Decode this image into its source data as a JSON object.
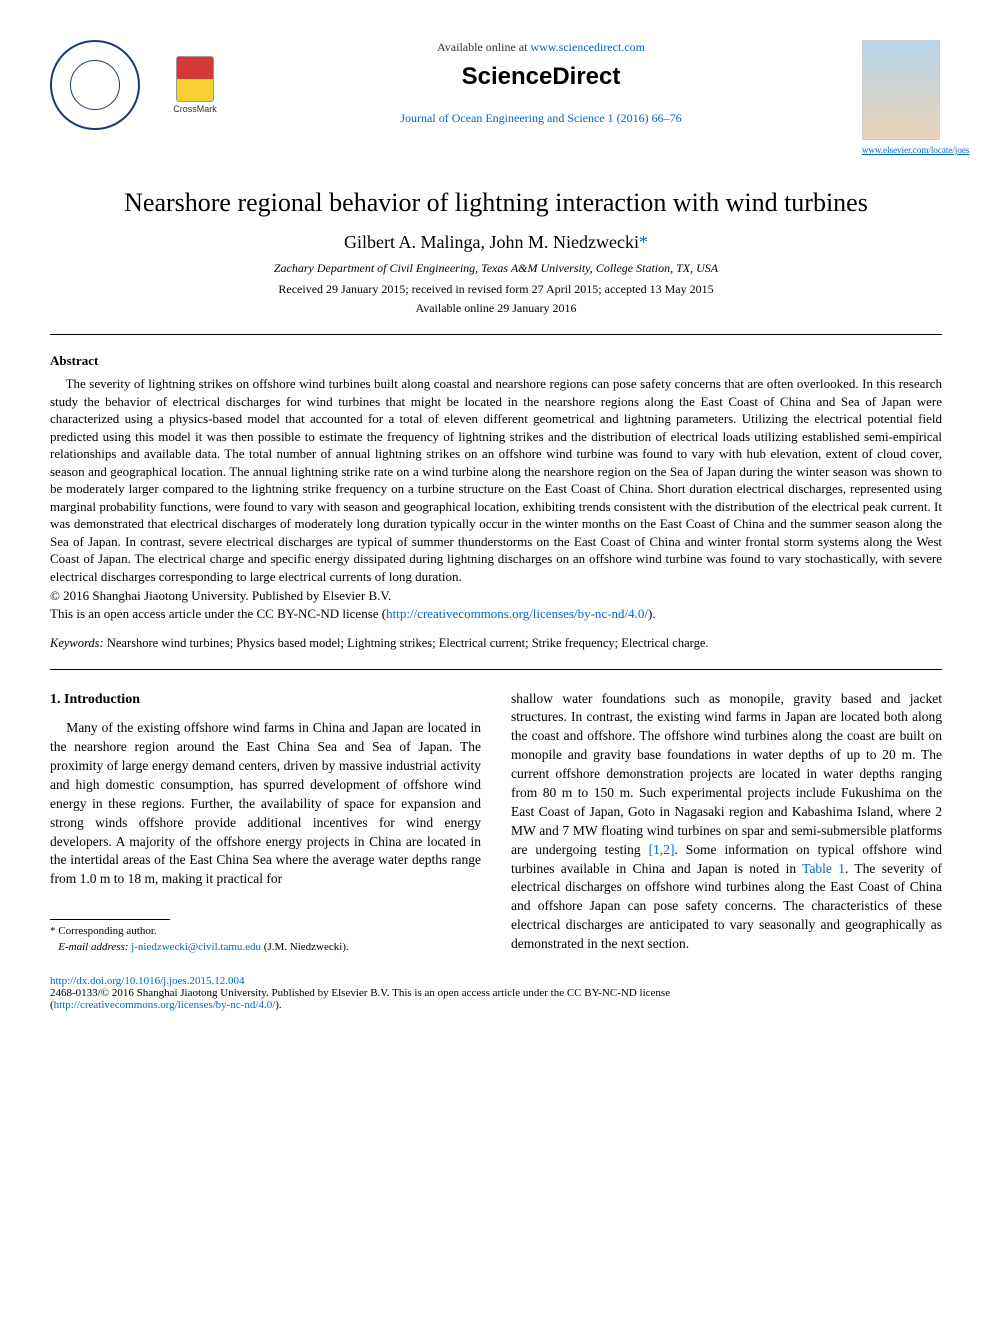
{
  "header": {
    "available_prefix": "Available online at ",
    "available_url": "www.sciencedirect.com",
    "brand": "ScienceDirect",
    "journal_citation": "Journal of Ocean Engineering and Science 1 (2016) 66–76",
    "cover_link": "www.elsevier.com/locate/joes",
    "crossmark_label": "CrossMark"
  },
  "article": {
    "title": "Nearshore regional behavior of lightning interaction with wind turbines",
    "authors": "Gilbert A. Malinga, John M. Niedzwecki",
    "corr_marker": "*",
    "affiliation": "Zachary Department of Civil Engineering, Texas A&M University, College Station, TX, USA",
    "dates_line1": "Received 29 January 2015; received in revised form 27 April 2015; accepted 13 May 2015",
    "dates_line2": "Available online 29 January 2016"
  },
  "abstract": {
    "heading": "Abstract",
    "body": "The severity of lightning strikes on offshore wind turbines built along coastal and nearshore regions can pose safety concerns that are often overlooked. In this research study the behavior of electrical discharges for wind turbines that might be located in the nearshore regions along the East Coast of China and Sea of Japan were characterized using a physics-based model that accounted for a total of eleven different geometrical and lightning parameters. Utilizing the electrical potential field predicted using this model it was then possible to estimate the frequency of lightning strikes and the distribution of electrical loads utilizing established semi-empirical relationships and available data. The total number of annual lightning strikes on an offshore wind turbine was found to vary with hub elevation, extent of cloud cover, season and geographical location. The annual lightning strike rate on a wind turbine along the nearshore region on the Sea of Japan during the winter season was shown to be moderately larger compared to the lightning strike frequency on a turbine structure on the East Coast of China. Short duration electrical discharges, represented using marginal probability functions, were found to vary with season and geographical location, exhibiting trends consistent with the distribution of the electrical peak current. It was demonstrated that electrical discharges of moderately long duration typically occur in the winter months on the East Coast of China and the summer season along the Sea of Japan. In contrast, severe electrical discharges are typical of summer thunderstorms on the East Coast of China and winter frontal storm systems along the West Coast of Japan. The electrical charge and specific energy dissipated during lightning discharges on an offshore wind turbine was found to vary stochastically, with severe electrical discharges corresponding to large electrical currents of long duration.",
    "copyright": "© 2016 Shanghai Jiaotong University. Published by Elsevier B.V.",
    "license_prefix": "This is an open access article under the CC BY-NC-ND license (",
    "license_url": "http://creativecommons.org/licenses/by-nc-nd/4.0/",
    "license_suffix": ")."
  },
  "keywords": {
    "label": "Keywords:",
    "list": " Nearshore wind turbines; Physics based model; Lightning strikes; Electrical current; Strike frequency; Electrical charge."
  },
  "body": {
    "sec1_heading": "1. Introduction",
    "left_para": "Many of the existing offshore wind farms in China and Japan are located in the nearshore region around the East China Sea and Sea of Japan. The proximity of large energy demand centers, driven by massive industrial activity and high domestic consumption, has spurred development of offshore wind energy in these regions. Further, the availability of space for expansion and strong winds offshore provide additional incentives for wind energy developers. A majority of the offshore energy projects in China are located in the intertidal areas of the East China Sea where the average water depths range from 1.0 m to 18 m, making it practical for",
    "right_p1": "shallow water foundations such as monopile, gravity based and jacket structures. In contrast, the existing wind farms in Japan are located both along the coast and offshore. The offshore wind turbines along the coast are built on monopile and gravity base foundations in water depths of up to 20 m. The current offshore demonstration projects are located in water depths ranging from 80 m to 150 m. Such experimental projects include Fukushima on the East Coast of Japan, Goto in Nagasaki region and Kabashima Island, where 2 MW and 7 MW floating wind turbines on spar and semi-submersible platforms are undergoing testing ",
    "right_ref1": "[1,2]",
    "right_p2": ". Some information on typical offshore wind turbines available in China and Japan is noted in ",
    "right_tab": "Table 1",
    "right_p3": ". The severity of electrical discharges on offshore wind turbines along the East Coast of China and offshore Japan can pose safety concerns. The characteristics of these electrical discharges are anticipated to vary seasonally and geographically as demonstrated in the next section."
  },
  "footnote": {
    "corr": "* Corresponding author.",
    "email_label": "E-mail address: ",
    "email": "j-niedzwecki@civil.tamu.edu",
    "email_suffix": " (J.M. Niedzwecki)."
  },
  "footer": {
    "doi": "http://dx.doi.org/10.1016/j.joes.2015.12.004",
    "issn_line": "2468-0133/© 2016 Shanghai Jiaotong University. Published by Elsevier B.V. This is an open access article under the CC BY-NC-ND license",
    "license_paren_open": "(",
    "license_url": "http://creativecommons.org/licenses/by-nc-nd/4.0/",
    "license_paren_close": ")."
  },
  "colors": {
    "link": "#0066cc",
    "text": "#000000",
    "bg": "#ffffff"
  }
}
